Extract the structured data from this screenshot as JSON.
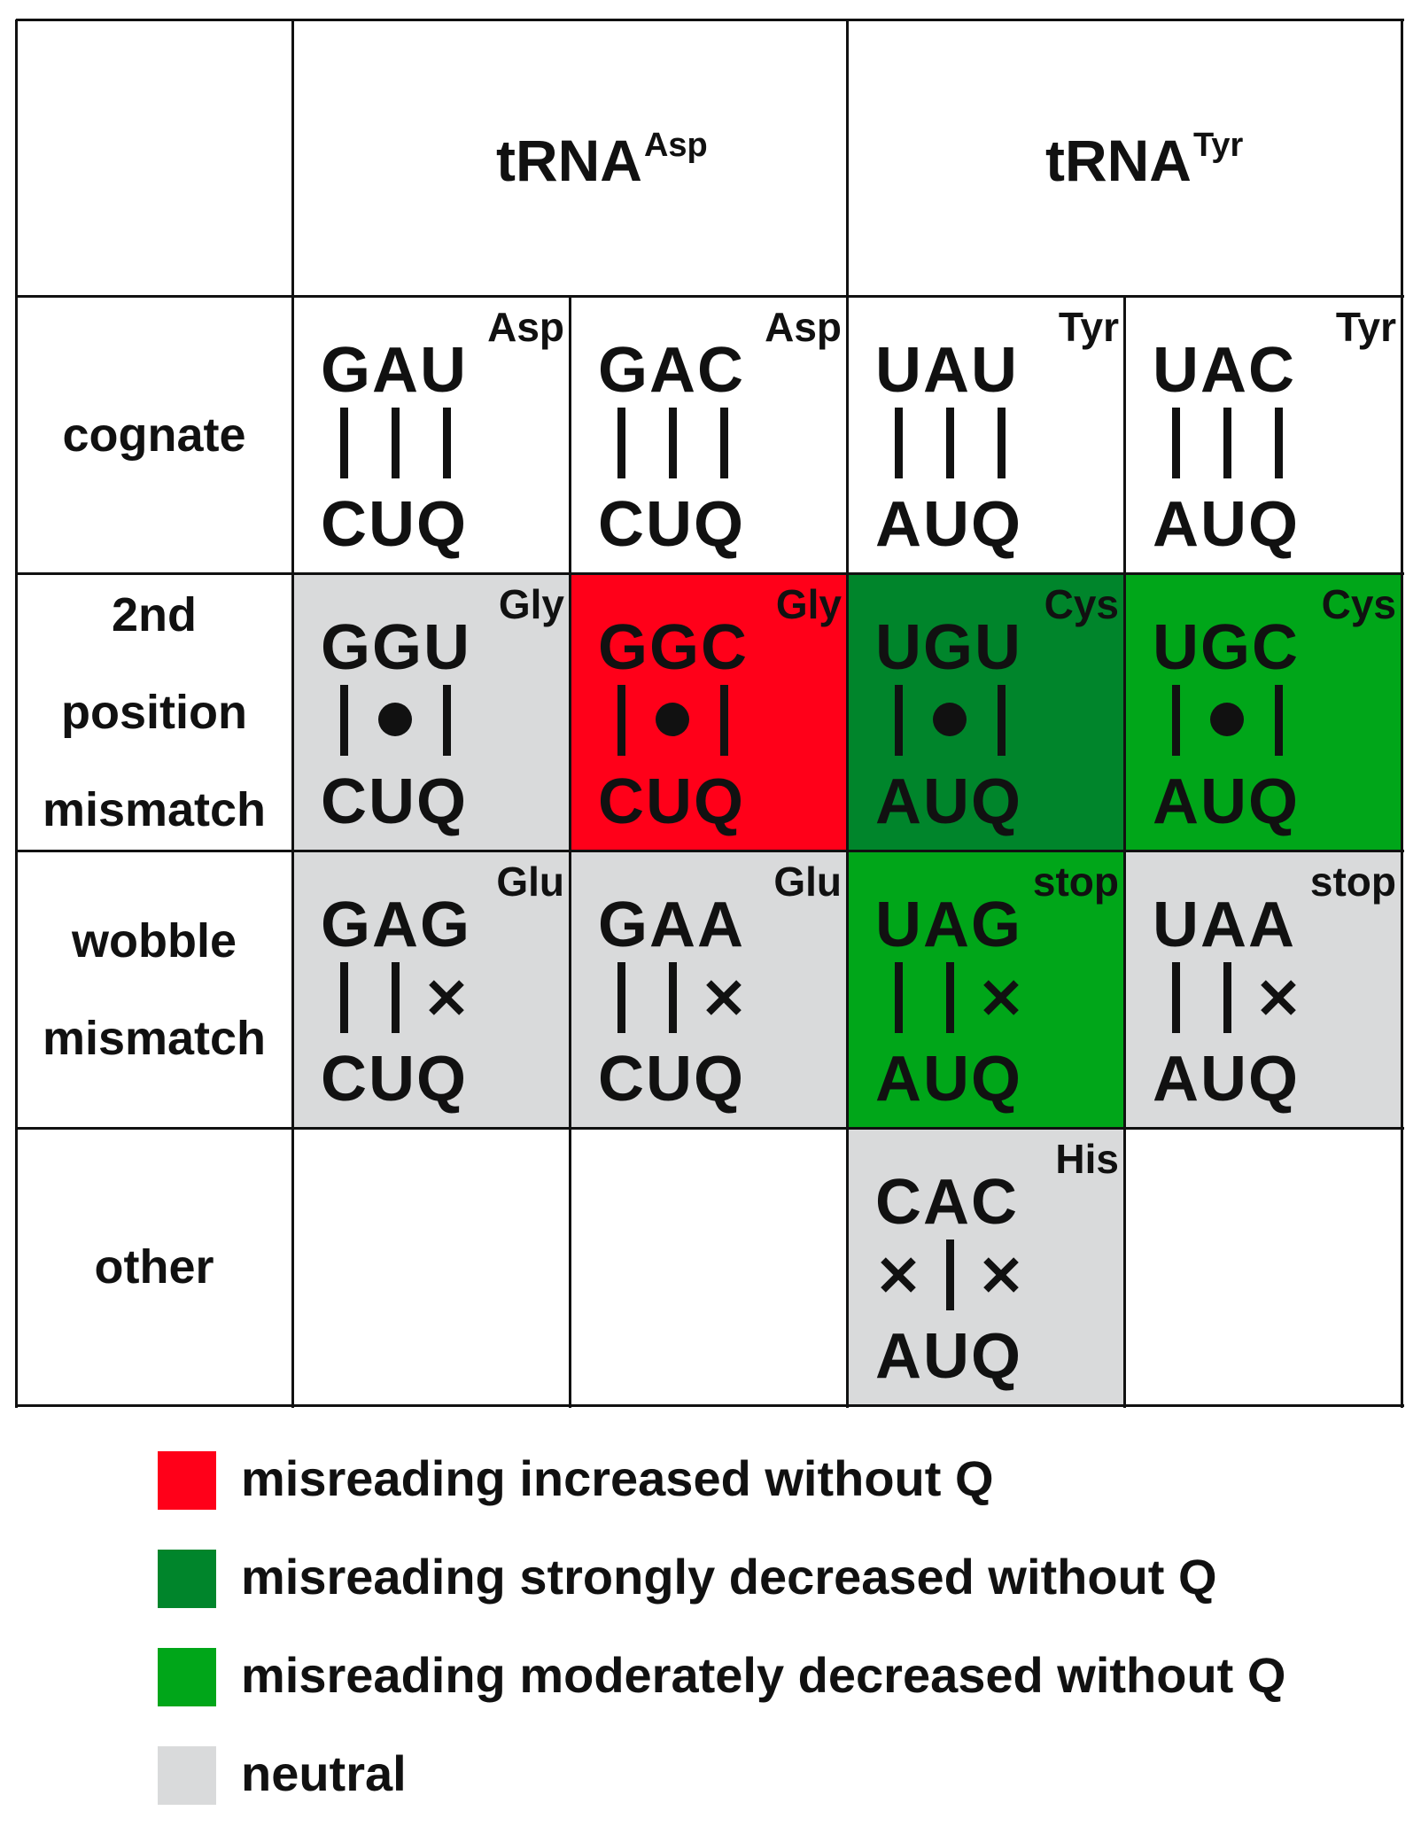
{
  "colors": {
    "increased": "#ff0019",
    "strongly_decreased": "#00852b",
    "moderately_decreased": "#00a619",
    "neutral": "#d9dadb",
    "none": "#ffffff"
  },
  "columns": [
    {
      "group": "tRNA",
      "group_sup": "Asp"
    },
    {
      "group": "tRNA",
      "group_sup": "Tyr"
    }
  ],
  "headers": [
    {
      "base": "tRNA",
      "sup": "Asp"
    },
    {
      "base": "tRNA",
      "sup": "Tyr"
    }
  ],
  "row_labels": [
    [
      "cognate"
    ],
    [
      "2nd",
      "position",
      "mismatch"
    ],
    [
      "wobble",
      "mismatch"
    ],
    [
      "other"
    ]
  ],
  "cells": [
    [
      {
        "codon": "GAU",
        "anticodon": "CUQ",
        "aa": "Asp",
        "pairing": [
          "bar",
          "bar",
          "bar"
        ],
        "effect": "none"
      },
      {
        "codon": "GAC",
        "anticodon": "CUQ",
        "aa": "Asp",
        "pairing": [
          "bar",
          "bar",
          "bar"
        ],
        "effect": "none"
      },
      {
        "codon": "UAU",
        "anticodon": "AUQ",
        "aa": "Tyr",
        "pairing": [
          "bar",
          "bar",
          "bar"
        ],
        "effect": "none"
      },
      {
        "codon": "UAC",
        "anticodon": "AUQ",
        "aa": "Tyr",
        "pairing": [
          "bar",
          "bar",
          "bar"
        ],
        "effect": "none"
      }
    ],
    [
      {
        "codon": "GGU",
        "anticodon": "CUQ",
        "aa": "Gly",
        "pairing": [
          "bar",
          "dot",
          "bar"
        ],
        "effect": "neutral"
      },
      {
        "codon": "GGC",
        "anticodon": "CUQ",
        "aa": "Gly",
        "pairing": [
          "bar",
          "dot",
          "bar"
        ],
        "effect": "increased"
      },
      {
        "codon": "UGU",
        "anticodon": "AUQ",
        "aa": "Cys",
        "pairing": [
          "bar",
          "dot",
          "bar"
        ],
        "effect": "strongly_decreased"
      },
      {
        "codon": "UGC",
        "anticodon": "AUQ",
        "aa": "Cys",
        "pairing": [
          "bar",
          "dot",
          "bar"
        ],
        "effect": "moderately_decreased"
      }
    ],
    [
      {
        "codon": "GAG",
        "anticodon": "CUQ",
        "aa": "Glu",
        "pairing": [
          "bar",
          "bar",
          "cross"
        ],
        "effect": "neutral"
      },
      {
        "codon": "GAA",
        "anticodon": "CUQ",
        "aa": "Glu",
        "pairing": [
          "bar",
          "bar",
          "cross"
        ],
        "effect": "neutral"
      },
      {
        "codon": "UAG",
        "anticodon": "AUQ",
        "aa": "stop",
        "pairing": [
          "bar",
          "bar",
          "cross"
        ],
        "effect": "moderately_decreased"
      },
      {
        "codon": "UAA",
        "anticodon": "AUQ",
        "aa": "stop",
        "pairing": [
          "bar",
          "bar",
          "cross"
        ],
        "effect": "neutral"
      }
    ],
    [
      null,
      null,
      {
        "codon": "CAC",
        "anticodon": "AUQ",
        "aa": "His",
        "pairing": [
          "cross",
          "bar",
          "cross"
        ],
        "effect": "neutral"
      },
      null
    ]
  ],
  "legend": [
    {
      "effect": "increased",
      "label": "misreading increased without Q"
    },
    {
      "effect": "strongly_decreased",
      "label": "misreading strongly decreased without Q"
    },
    {
      "effect": "moderately_decreased",
      "label": "misreading moderately decreased without Q"
    },
    {
      "effect": "neutral",
      "label": "neutral"
    }
  ]
}
